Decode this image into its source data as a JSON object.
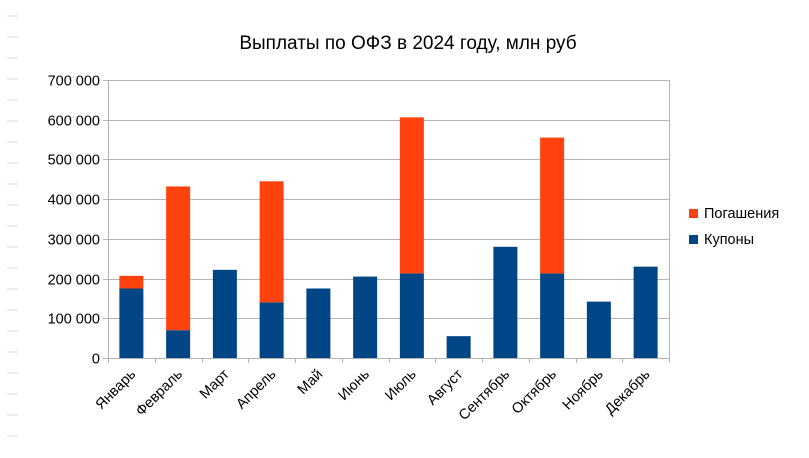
{
  "chart_data": {
    "type": "bar",
    "stacked": true,
    "title": "Выплаты по ОФЗ в 2024 году, млн руб",
    "xlabel": "",
    "ylabel": "",
    "categories": [
      "Январь",
      "Февраль",
      "Март",
      "Апрель",
      "Май",
      "Июнь",
      "Июль",
      "Август",
      "Сентябрь",
      "Октябрь",
      "Ноябрь",
      "Декабрь"
    ],
    "series": [
      {
        "name": "Купоны",
        "color": "#004586",
        "values": [
          175000,
          70000,
          222000,
          140000,
          175000,
          205000,
          213000,
          55000,
          280000,
          213000,
          142000,
          230000
        ]
      },
      {
        "name": "Погашения",
        "color": "#ff420e",
        "values": [
          32000,
          362000,
          0,
          305000,
          0,
          0,
          393000,
          0,
          0,
          342000,
          0,
          0
        ]
      }
    ],
    "ylim": [
      0,
      700000
    ],
    "yticks": [
      0,
      100000,
      200000,
      300000,
      400000,
      500000,
      600000,
      700000
    ],
    "ytick_labels": [
      "0",
      "100 000",
      "200 000",
      "300 000",
      "400 000",
      "500 000",
      "600 000",
      "700 000"
    ],
    "grid": true,
    "legend_position": "right",
    "legend": [
      "Погашения",
      "Купоны"
    ]
  }
}
